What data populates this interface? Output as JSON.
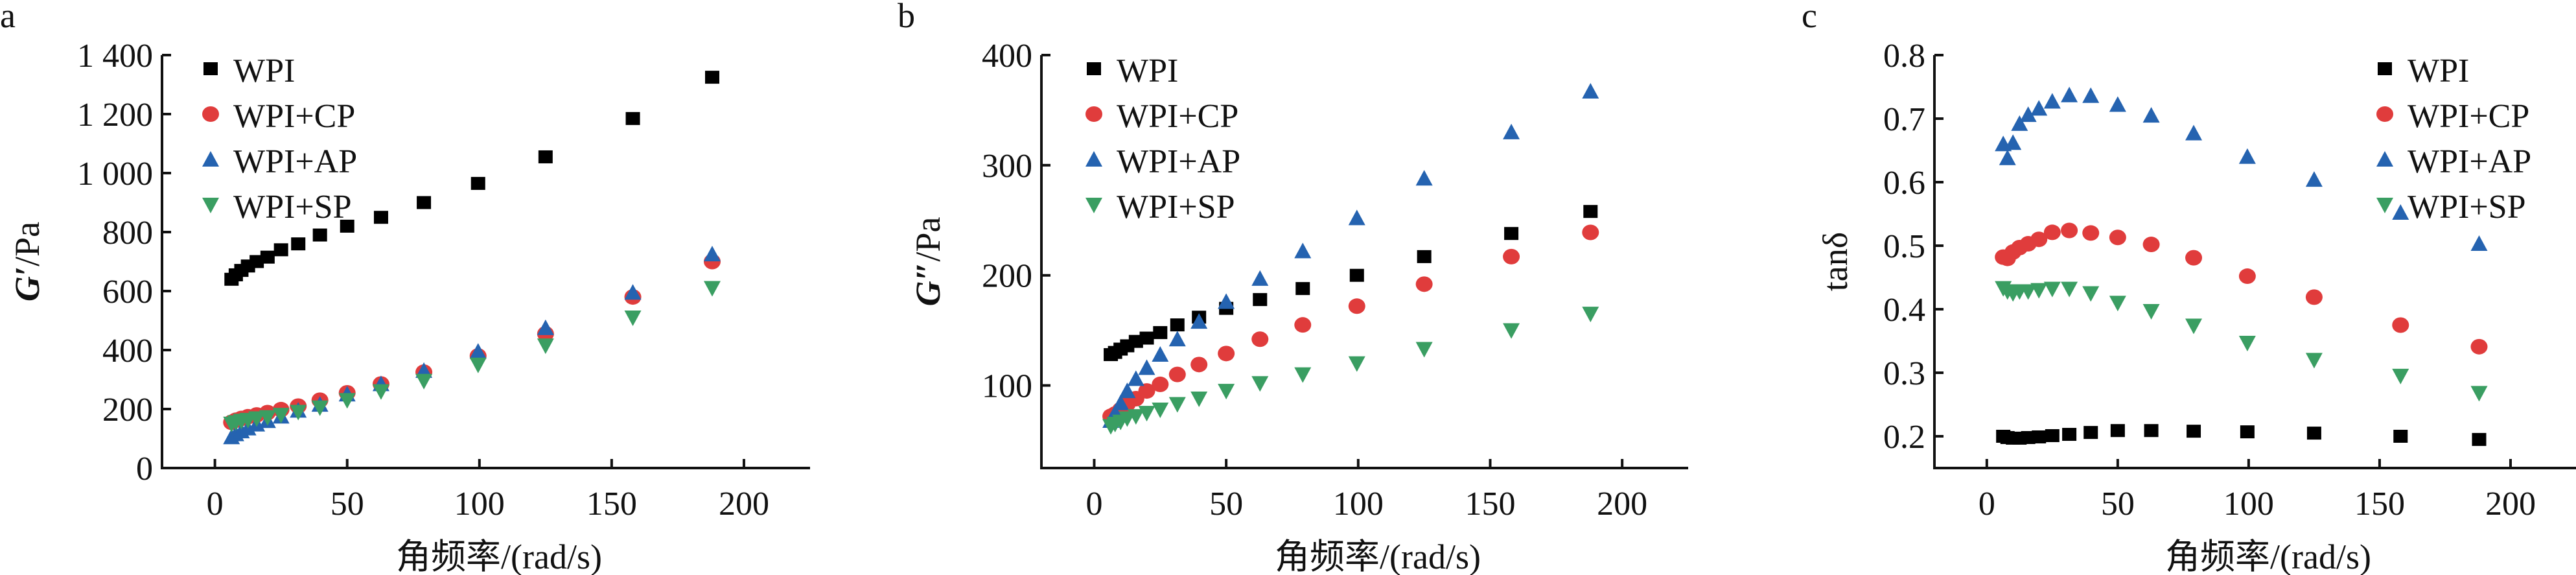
{
  "figure": {
    "panels": [
      "a",
      "b",
      "c"
    ]
  },
  "series_style": [
    {
      "name": "WPI",
      "marker": "square",
      "color": "#000000"
    },
    {
      "name": "WPI+CP",
      "marker": "circle",
      "color": "#E03C3C"
    },
    {
      "name": "WPI+AP",
      "marker": "triangle-up",
      "color": "#2563B0"
    },
    {
      "name": "WPI+SP",
      "marker": "triangle-down",
      "color": "#3A9E62"
    }
  ],
  "chart_data": [
    {
      "panel": "a",
      "type": "scatter",
      "title": "",
      "xlabel": "角频率/(rad/s)",
      "ylabel_italic": "G′",
      "ylabel_rest": "/Pa",
      "xlim": [
        -20,
        225
      ],
      "ylim": [
        0,
        1400
      ],
      "xticks": [
        0,
        50,
        100,
        150,
        200
      ],
      "yticks": [
        0,
        200,
        400,
        600,
        800,
        1000,
        1200,
        1400
      ],
      "ytick_labels": [
        "0",
        "200",
        "400",
        "600",
        "800",
        "1 000",
        "1 200",
        "1 400"
      ],
      "legend_position": "top-left",
      "x": [
        6.28,
        7.9,
        10,
        12.5,
        15.8,
        19.9,
        25,
        31.5,
        39.7,
        50,
        62.8,
        79,
        99.5,
        125,
        158,
        188
      ],
      "series": [
        {
          "name": "WPI",
          "values": [
            640,
            655,
            670,
            685,
            700,
            715,
            740,
            760,
            790,
            820,
            850,
            900,
            965,
            1055,
            1185,
            1325
          ]
        },
        {
          "name": "WPI+CP",
          "values": [
            155,
            162,
            168,
            174,
            180,
            188,
            198,
            210,
            230,
            255,
            285,
            325,
            380,
            455,
            580,
            700
          ]
        },
        {
          "name": "WPI+AP",
          "values": [
            105,
            115,
            125,
            135,
            148,
            160,
            175,
            195,
            215,
            250,
            285,
            330,
            395,
            475,
            595,
            725
          ]
        },
        {
          "name": "WPI+SP",
          "values": [
            150,
            155,
            160,
            163,
            168,
            172,
            180,
            190,
            205,
            230,
            260,
            295,
            350,
            415,
            510,
            610
          ]
        }
      ]
    },
    {
      "panel": "b",
      "type": "scatter",
      "title": "",
      "xlabel": "角频率/(rad/s)",
      "ylabel_italic": "G″",
      "ylabel_rest": "/Pa",
      "xlim": [
        -20,
        225
      ],
      "ylim": [
        25,
        400
      ],
      "xticks": [
        0,
        50,
        100,
        150,
        200
      ],
      "yticks": [
        100,
        200,
        300,
        400
      ],
      "ytick_labels": [
        "100",
        "200",
        "300",
        "400"
      ],
      "legend_position": "top-left",
      "x": [
        6.28,
        7.9,
        10,
        12.5,
        15.8,
        19.9,
        25,
        31.5,
        39.7,
        50,
        62.8,
        79,
        99.5,
        125,
        158,
        188
      ],
      "series": [
        {
          "name": "WPI",
          "values": [
            128,
            130,
            133,
            136,
            140,
            143,
            148,
            155,
            162,
            170,
            178,
            188,
            200,
            217,
            238,
            258
          ]
        },
        {
          "name": "WPI+CP",
          "values": [
            72,
            74,
            78,
            83,
            88,
            95,
            101,
            110,
            119,
            129,
            142,
            155,
            172,
            192,
            217,
            239
          ]
        },
        {
          "name": "WPI+AP",
          "values": [
            68,
            75,
            84,
            95,
            106,
            116,
            128,
            142,
            158,
            176,
            197,
            222,
            252,
            288,
            330,
            367
          ]
        },
        {
          "name": "WPI+SP",
          "values": [
            63,
            65,
            67,
            70,
            72,
            75,
            78,
            83,
            88,
            95,
            102,
            110,
            120,
            133,
            150,
            165
          ]
        }
      ]
    },
    {
      "panel": "c",
      "type": "scatter",
      "title": "",
      "xlabel": "角频率/(rad/s)",
      "ylabel_italic": "",
      "ylabel_rest": "tanδ",
      "xlim": [
        -20,
        225
      ],
      "ylim": [
        0.15,
        0.8
      ],
      "xticks": [
        0,
        50,
        100,
        150,
        200
      ],
      "yticks": [
        0.2,
        0.3,
        0.4,
        0.5,
        0.6,
        0.7,
        0.8
      ],
      "ytick_labels": [
        "0.2",
        "0.3",
        "0.4",
        "0.5",
        "0.6",
        "0.7",
        "0.8"
      ],
      "legend_position": "top-right",
      "x": [
        6.28,
        7.9,
        10,
        12.5,
        15.8,
        19.9,
        25,
        31.5,
        39.7,
        50,
        62.8,
        79,
        99.5,
        125,
        158,
        188
      ],
      "series": [
        {
          "name": "WPI",
          "values": [
            0.2,
            0.198,
            0.197,
            0.197,
            0.198,
            0.199,
            0.201,
            0.203,
            0.206,
            0.209,
            0.209,
            0.208,
            0.207,
            0.205,
            0.2,
            0.195
          ]
        },
        {
          "name": "WPI+CP",
          "values": [
            0.482,
            0.48,
            0.49,
            0.497,
            0.503,
            0.51,
            0.521,
            0.524,
            0.52,
            0.513,
            0.502,
            0.481,
            0.452,
            0.419,
            0.375,
            0.341
          ]
        },
        {
          "name": "WPI+AP",
          "values": [
            0.66,
            0.638,
            0.662,
            0.692,
            0.706,
            0.716,
            0.727,
            0.737,
            0.736,
            0.722,
            0.705,
            0.677,
            0.64,
            0.604,
            0.552,
            0.503
          ]
        },
        {
          "name": "WPI+SP",
          "values": [
            0.433,
            0.428,
            0.425,
            0.428,
            0.428,
            0.43,
            0.432,
            0.432,
            0.425,
            0.41,
            0.397,
            0.374,
            0.347,
            0.32,
            0.295,
            0.268
          ]
        }
      ]
    }
  ]
}
